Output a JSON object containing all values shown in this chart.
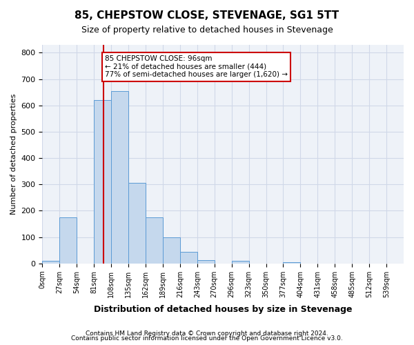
{
  "title": "85, CHEPSTOW CLOSE, STEVENAGE, SG1 5TT",
  "subtitle": "Size of property relative to detached houses in Stevenage",
  "xlabel": "Distribution of detached houses by size in Stevenage",
  "ylabel": "Number of detached properties",
  "bin_labels": [
    "0sqm",
    "27sqm",
    "54sqm",
    "81sqm",
    "108sqm",
    "135sqm",
    "162sqm",
    "189sqm",
    "216sqm",
    "243sqm",
    "270sqm",
    "296sqm",
    "323sqm",
    "350sqm",
    "377sqm",
    "404sqm",
    "431sqm",
    "458sqm",
    "485sqm",
    "512sqm",
    "539sqm"
  ],
  "bar_values": [
    10,
    175,
    0,
    620,
    655,
    305,
    175,
    98,
    45,
    12,
    0,
    10,
    0,
    0,
    5,
    0,
    0,
    0,
    0,
    0,
    0
  ],
  "bar_color": "#c5d8ed",
  "bar_edge_color": "#5b9bd5",
  "grid_color": "#d0d8e8",
  "background_color": "#eef2f8",
  "bin_width": 27,
  "property_line_x": 96,
  "property_line_color": "#cc0000",
  "annotation_text": "85 CHEPSTOW CLOSE: 96sqm\n← 21% of detached houses are smaller (444)\n77% of semi-detached houses are larger (1,620) →",
  "annotation_box_color": "#cc0000",
  "ylim": [
    0,
    830
  ],
  "yticks": [
    0,
    100,
    200,
    300,
    400,
    500,
    600,
    700,
    800
  ],
  "footer_line1": "Contains HM Land Registry data © Crown copyright and database right 2024.",
  "footer_line2": "Contains public sector information licensed under the Open Government Licence v3.0."
}
